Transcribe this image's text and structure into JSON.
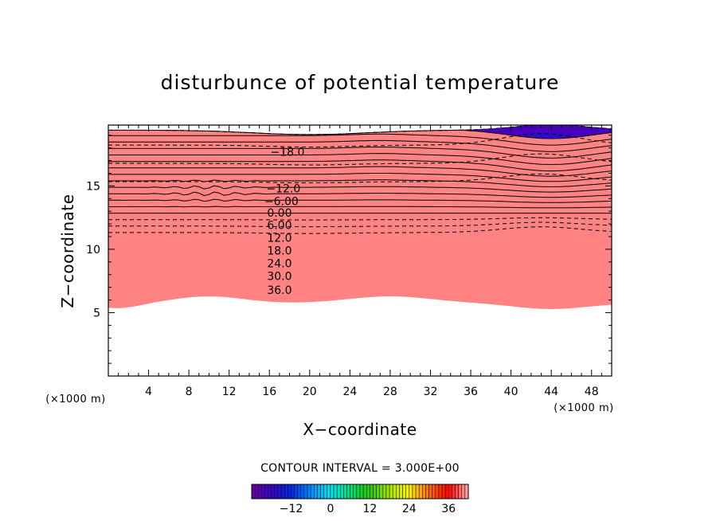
{
  "chart_data": {
    "type": "heatmap",
    "title": "disturbunce of potential temperature",
    "xlabel": "X−coordinate",
    "ylabel": "Z−coordinate",
    "x_unit_label": "(×1000 m)",
    "z_unit_label": "(×1000 m)",
    "xlim": [
      0,
      50
    ],
    "ylim": [
      0,
      19.8
    ],
    "x_ticks": [
      4,
      8,
      12,
      16,
      20,
      24,
      28,
      32,
      36,
      40,
      44,
      48
    ],
    "y_ticks": [
      5,
      10,
      15
    ],
    "contour_interval_text": "CONTOUR INTERVAL = 3.000E+00",
    "contour_interval": 3,
    "value_range": [
      -24,
      42
    ],
    "contour_labels": [
      {
        "text": "−18.0",
        "x": 17.8,
        "z": 17.7
      },
      {
        "text": "−12.0",
        "x": 17.4,
        "z": 14.8
      },
      {
        "text": "−6.00",
        "x": 17.2,
        "z": 13.8
      },
      {
        "text": "0.00",
        "x": 17.0,
        "z": 12.9
      },
      {
        "text": "6.00",
        "x": 17.0,
        "z": 11.9
      },
      {
        "text": "12.0",
        "x": 17.0,
        "z": 10.9
      },
      {
        "text": "18.0",
        "x": 17.0,
        "z": 9.9
      },
      {
        "text": "24.0",
        "x": 17.0,
        "z": 8.9
      },
      {
        "text": "30.0",
        "x": 17.0,
        "z": 7.9
      },
      {
        "text": "36.0",
        "x": 17.0,
        "z": 6.8
      }
    ],
    "colorbar": {
      "ticks": [
        -12,
        0,
        12,
        24,
        36
      ],
      "tick_labels": [
        "−12",
        "0",
        "12",
        "24",
        "36"
      ],
      "min": -24,
      "max": 42
    },
    "colors": {
      "violet": "#7a00b0",
      "blue": "#0030ff",
      "cyan": "#00e0ff",
      "green": "#30d000",
      "yellow": "#f0f000",
      "orange": "#ff9000",
      "red": "#ff0000",
      "pink": "#ffb0b0"
    }
  }
}
